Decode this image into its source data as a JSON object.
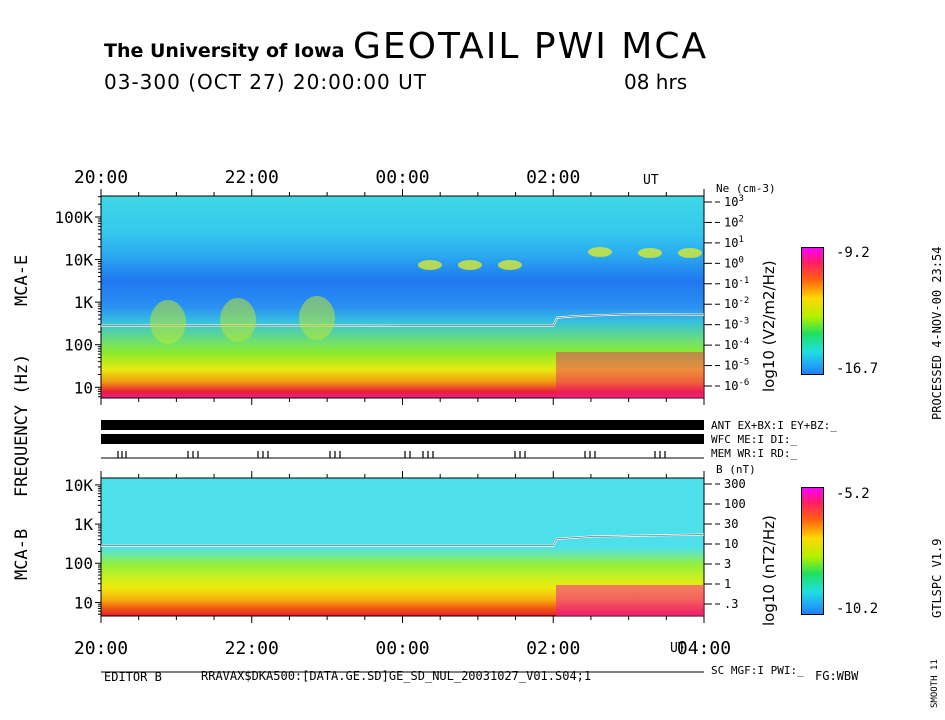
{
  "header": {
    "institution": "The University of Iowa",
    "title": "GEOTAIL  PWI  MCA",
    "date_line": "03-300 (OCT 27) 20:00:00 UT",
    "duration": "08 hrs"
  },
  "side": {
    "processed": "PROCESSED  4-NOV-00  23:54",
    "version": "GTLSPC  V1.9",
    "smooth": "SMOOTH 11"
  },
  "footer": {
    "editor": "EDITOR B",
    "path": "RRAVAX$DKA500:[DATA.GE.SD]GE_SD_NUL_20031027_V01.S04;1",
    "fg": "FG:WBW",
    "sc_status": "SC MGF:I   PWI:_"
  },
  "status_rows": {
    "ant": "ANT EX+BX:I  EY+BZ:_",
    "wfc": "WFC ME:I     DI:_",
    "mem": "MEM WR:I     RD:_"
  },
  "axes": {
    "frequency_label": "FREQUENCY (Hz)",
    "mca_e_label": "MCA-E",
    "mca_b_label": "MCA-B",
    "ut_label": "UT",
    "ne_label": "Ne (cm-3)",
    "b_label": "B (nT)"
  },
  "colors": {
    "trace": "#ffffff",
    "axis": "#000000"
  },
  "chart_data": [
    {
      "type": "heatmap",
      "title": "MCA-E",
      "xlabel": "UT",
      "ylabel": "FREQUENCY (Hz)",
      "x_ticks": [
        "20:00",
        "22:00",
        "00:00",
        "02:00"
      ],
      "x_range_hours": [
        0,
        8
      ],
      "y_scale": "log",
      "y_range": [
        5.6,
        311000
      ],
      "y_ticks": [
        {
          "label": "10",
          "value": 10
        },
        {
          "label": "100",
          "value": 100
        },
        {
          "label": "1K",
          "value": 1000
        },
        {
          "label": "10K",
          "value": 10000
        },
        {
          "label": "100K",
          "value": 100000
        }
      ],
      "right_axis": {
        "label": "Ne (cm-3)",
        "ticks": [
          {
            "mant": "10",
            "exp": "3"
          },
          {
            "mant": "10",
            "exp": "2"
          },
          {
            "mant": "10",
            "exp": "1"
          },
          {
            "mant": "10",
            "exp": "0"
          },
          {
            "mant": "10",
            "exp": "-1"
          },
          {
            "mant": "10",
            "exp": "-2"
          },
          {
            "mant": "10",
            "exp": "-3"
          },
          {
            "mant": "10",
            "exp": "-4"
          },
          {
            "mant": "10",
            "exp": "-5"
          },
          {
            "mant": "10",
            "exp": "-6"
          }
        ]
      },
      "colorbar": {
        "label": "log10 (V2/m2/Hz)",
        "max": "-9.2",
        "min": "-16.7"
      },
      "trace_freq_hz": [
        [
          0,
          280
        ],
        [
          2,
          285
        ],
        [
          4,
          280
        ],
        [
          6.0,
          280
        ],
        [
          6.05,
          430
        ],
        [
          6.3,
          470
        ],
        [
          7,
          520
        ],
        [
          8,
          510
        ]
      ]
    },
    {
      "type": "heatmap",
      "title": "MCA-B",
      "xlabel": "UT",
      "ylabel": "FREQUENCY (Hz)",
      "x_ticks": [
        "20:00",
        "22:00",
        "00:00",
        "02:00",
        "04:00"
      ],
      "x_range_hours": [
        0,
        8
      ],
      "y_scale": "log",
      "y_range": [
        4.5,
        15000
      ],
      "y_ticks": [
        {
          "label": "10",
          "value": 10
        },
        {
          "label": "100",
          "value": 100
        },
        {
          "label": "1K",
          "value": 1000
        },
        {
          "label": "10K",
          "value": 10000
        }
      ],
      "right_axis": {
        "label": "B (nT)",
        "ticks": [
          "300",
          "100",
          "30",
          "10",
          "3",
          "1",
          ".3"
        ]
      },
      "colorbar": {
        "label": "log10 (nT2/Hz)",
        "max": "-5.2",
        "min": "-10.2"
      },
      "trace_freq_hz": [
        [
          0,
          280
        ],
        [
          2,
          280
        ],
        [
          4,
          280
        ],
        [
          6.0,
          280
        ],
        [
          6.05,
          420
        ],
        [
          6.5,
          480
        ],
        [
          7,
          500
        ],
        [
          8,
          540
        ]
      ]
    }
  ]
}
